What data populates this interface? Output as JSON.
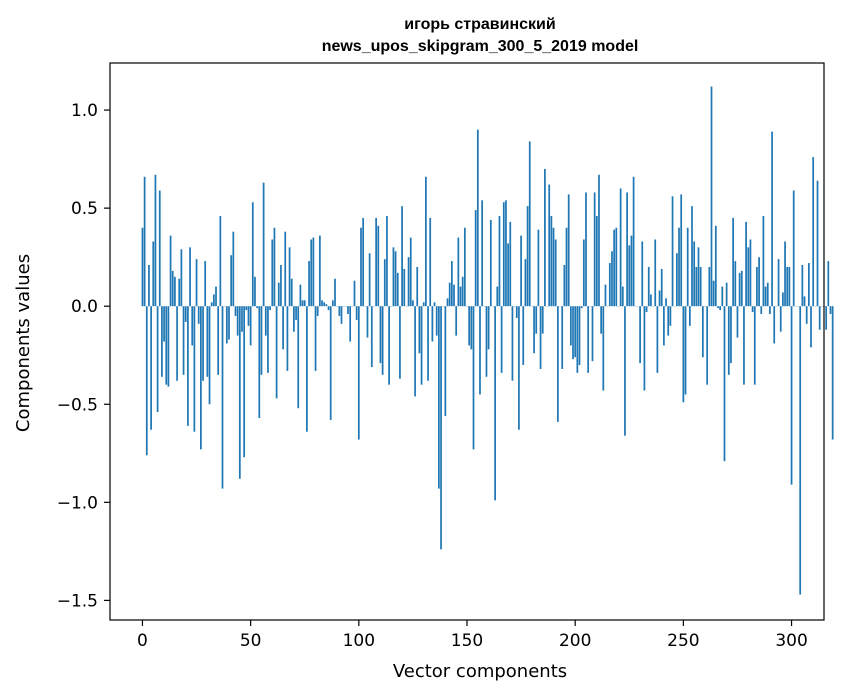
{
  "chart_data": {
    "type": "bar",
    "title_lines": [
      "игорь стравинский",
      "news_upos_skipgram_300_5_2019 model"
    ],
    "xlabel": "Vector components",
    "ylabel": "Components values",
    "xlim": [
      -15,
      315
    ],
    "ylim": [
      -1.6,
      1.24
    ],
    "xticks": [
      0,
      50,
      100,
      150,
      200,
      250,
      300
    ],
    "yticks": [
      -1.5,
      -1.0,
      -0.5,
      0.0,
      0.5,
      1.0
    ],
    "ytick_labels": [
      "−1.5",
      "−1.0",
      "−0.5",
      "0.0",
      "0.5",
      "1.0"
    ],
    "grid": false,
    "bar_color": "#1f77b4",
    "values": [
      0.4,
      0.66,
      -0.76,
      0.21,
      -0.63,
      0.33,
      0.67,
      -0.54,
      0.59,
      -0.36,
      -0.18,
      -0.4,
      -0.41,
      0.36,
      0.18,
      0.15,
      -0.38,
      0.14,
      0.29,
      -0.35,
      -0.08,
      -0.61,
      0.3,
      -0.2,
      -0.64,
      0.24,
      -0.09,
      -0.73,
      -0.38,
      0.23,
      -0.36,
      -0.5,
      0.02,
      0.06,
      0.1,
      -0.35,
      0.46,
      -0.93,
      0.0,
      -0.19,
      -0.17,
      0.26,
      0.38,
      -0.05,
      -0.15,
      -0.88,
      -0.13,
      -0.77,
      -0.02,
      -0.1,
      -0.2,
      0.53,
      0.15,
      -0.01,
      -0.57,
      -0.35,
      0.63,
      -0.15,
      -0.34,
      -0.02,
      0.34,
      0.4,
      -0.47,
      0.12,
      0.21,
      -0.22,
      0.38,
      -0.33,
      0.3,
      0.14,
      -0.13,
      -0.07,
      -0.52,
      0.11,
      0.03,
      0.03,
      -0.64,
      0.23,
      0.34,
      0.35,
      -0.33,
      -0.05,
      0.36,
      0.03,
      0.02,
      0.01,
      -0.02,
      -0.58,
      0.03,
      0.14,
      0.0,
      -0.05,
      -0.09,
      0.0,
      0.0,
      -0.04,
      -0.18,
      0.0,
      0.13,
      -0.07,
      -0.68,
      0.4,
      0.45,
      0.0,
      -0.16,
      0.27,
      -0.31,
      0.0,
      0.45,
      0.41,
      -0.29,
      -0.35,
      0.24,
      0.46,
      -0.4,
      0.0,
      0.3,
      0.28,
      0.17,
      -0.37,
      0.51,
      0.19,
      0.0,
      0.25,
      0.35,
      0.03,
      -0.46,
      0.2,
      -0.24,
      -0.4,
      0.02,
      0.66,
      -0.38,
      0.45,
      -0.18,
      0.02,
      -0.15,
      -0.93,
      -1.24,
      0.0,
      -0.56,
      0.04,
      0.12,
      0.23,
      0.11,
      -0.15,
      0.35,
      0.1,
      0.15,
      0.4,
      0.0,
      -0.2,
      -0.22,
      -0.73,
      0.49,
      0.9,
      -0.45,
      0.54,
      0.0,
      -0.36,
      -0.22,
      0.44,
      0.0,
      -0.99,
      0.1,
      0.46,
      -0.34,
      0.53,
      0.54,
      0.32,
      0.43,
      -0.38,
      0.0,
      -0.06,
      -0.63,
      0.36,
      -0.3,
      0.24,
      0.51,
      0.84,
      0.0,
      -0.24,
      -0.14,
      0.39,
      -0.32,
      -0.14,
      0.7,
      0.0,
      0.62,
      0.46,
      0.4,
      0.34,
      -0.59,
      0.0,
      -0.32,
      0.21,
      0.4,
      0.57,
      -0.2,
      -0.27,
      -0.26,
      -0.34,
      -0.3,
      -0.01,
      0.34,
      0.58,
      -0.34,
      0.0,
      -0.28,
      0.58,
      0.46,
      0.67,
      -0.14,
      -0.43,
      0.11,
      0.0,
      0.22,
      0.28,
      0.39,
      0.4,
      0.0,
      0.6,
      0.1,
      -0.66,
      0.58,
      0.31,
      0.36,
      0.66,
      0.0,
      0.0,
      -0.29,
      0.33,
      -0.43,
      -0.03,
      0.2,
      0.06,
      0.0,
      0.34,
      -0.34,
      0.08,
      0.19,
      -0.2,
      0.04,
      -0.15,
      -0.1,
      0.56,
      0.0,
      0.27,
      0.4,
      0.57,
      -0.49,
      -0.45,
      0.4,
      -0.1,
      0.51,
      0.33,
      0.2,
      0.3,
      0.2,
      -0.26,
      0.0,
      -0.4,
      0.2,
      1.12,
      0.13,
      0.41,
      -0.01,
      -0.02,
      0.1,
      -0.79,
      0.12,
      -0.35,
      -0.29,
      0.45,
      0.23,
      -0.16,
      0.17,
      0.18,
      -0.4,
      0.43,
      0.3,
      0.34,
      -0.03,
      -0.4,
      0.2,
      0.25,
      -0.04,
      0.46,
      0.1,
      0.12,
      -0.04,
      0.89,
      -0.19,
      0.0,
      0.24,
      -0.13,
      0.07,
      0.33,
      0.2,
      0.2,
      -0.91,
      0.59,
      0.0,
      0.0,
      -1.47,
      0.21,
      0.05,
      -0.09,
      0.22,
      -0.21,
      0.76,
      0.0,
      0.64,
      -0.12,
      0.0,
      0.0,
      -0.12,
      0.23,
      -0.04,
      -0.68
    ]
  }
}
